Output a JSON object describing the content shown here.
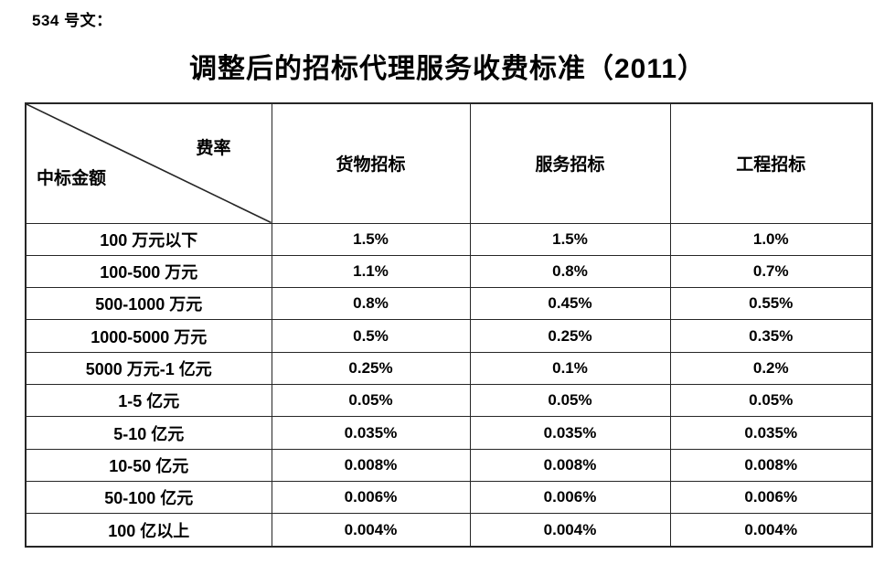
{
  "page": {
    "doc_label": "534 号文：",
    "title": "调整后的招标代理服务收费标准（2011）"
  },
  "table": {
    "corner": {
      "top_right": "费率",
      "bottom_left": "中标金额"
    },
    "columns": [
      "货物招标",
      "服务招标",
      "工程招标"
    ],
    "rows": [
      {
        "label": "100 万元以下",
        "values": [
          "1.5%",
          "1.5%",
          "1.0%"
        ]
      },
      {
        "label": "100-500 万元",
        "values": [
          "1.1%",
          "0.8%",
          "0.7%"
        ]
      },
      {
        "label": "500-1000 万元",
        "values": [
          "0.8%",
          "0.45%",
          "0.55%"
        ]
      },
      {
        "label": "1000-5000 万元",
        "values": [
          "0.5%",
          "0.25%",
          "0.35%"
        ]
      },
      {
        "label": "5000 万元-1 亿元",
        "values": [
          "0.25%",
          "0.1%",
          "0.2%"
        ]
      },
      {
        "label": "1-5 亿元",
        "values": [
          "0.05%",
          "0.05%",
          "0.05%"
        ]
      },
      {
        "label": "5-10 亿元",
        "values": [
          "0.035%",
          "0.035%",
          "0.035%"
        ]
      },
      {
        "label": "10-50 亿元",
        "values": [
          "0.008%",
          "0.008%",
          "0.008%"
        ]
      },
      {
        "label": "50-100 亿元",
        "values": [
          "0.006%",
          "0.006%",
          "0.006%"
        ]
      },
      {
        "label": "100 亿以上",
        "values": [
          "0.004%",
          "0.004%",
          "0.004%"
        ]
      }
    ]
  },
  "colors": {
    "text": "#000000",
    "border": "#262626",
    "background": "#ffffff"
  }
}
